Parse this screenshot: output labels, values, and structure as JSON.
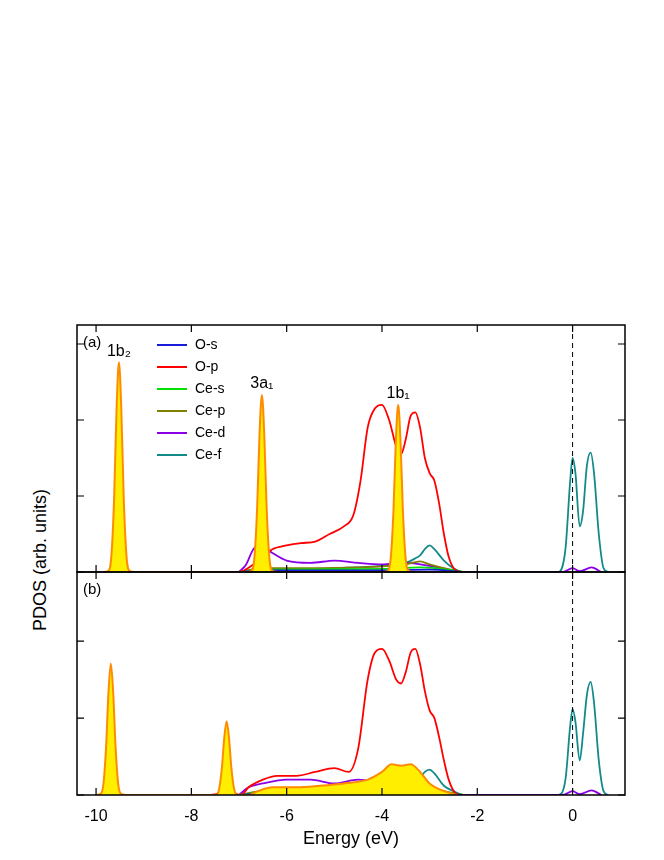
{
  "y_label": "PDOS (arb. units)",
  "chart_data": [
    {
      "type": "line",
      "title": "(a)",
      "xlim": [
        -10.4,
        1.1
      ],
      "xticks": [
        -10,
        -8,
        -6,
        -4,
        -2,
        0
      ],
      "ylim": [
        0,
        3.25
      ],
      "yticks": [
        0,
        1,
        2,
        3
      ],
      "tick_labels": false,
      "grid": false,
      "legend": "upper left",
      "annotations": [
        {
          "text": "1b₂",
          "x": -9.52,
          "y": 2.76
        },
        {
          "text": "3a₁",
          "x": -6.52,
          "y": 2.33
        },
        {
          "text": "1b₁",
          "x": -3.66,
          "y": 2.2
        }
      ],
      "reference_lines": [
        {
          "x": 0,
          "line_style": "dashed"
        }
      ],
      "series": [
        {
          "type": "area",
          "color": "#ff8c00",
          "x": [
            -9.85,
            -9.75,
            -9.68,
            -9.62,
            -9.57,
            -9.52,
            -9.47,
            -9.42,
            -9.36,
            -9.29,
            -9.19,
            -6.85,
            -6.75,
            -6.68,
            -6.62,
            -6.57,
            -6.52,
            -6.47,
            -6.42,
            -6.36,
            -6.29,
            -6.19,
            -3.99,
            -3.89,
            -3.82,
            -3.76,
            -3.71,
            -3.66,
            -3.61,
            -3.56,
            -3.5,
            -3.43,
            -3.33
          ],
          "values": [
            0,
            0.01,
            0.2,
            0.99,
            2.14,
            2.76,
            2.14,
            0.99,
            0.2,
            0.01,
            0,
            0,
            0.01,
            0.17,
            0.84,
            1.81,
            2.33,
            1.81,
            0.84,
            0.17,
            0.01,
            0,
            0,
            0.01,
            0.16,
            0.79,
            1.71,
            2.2,
            1.71,
            0.79,
            0.16,
            0.01,
            0
          ]
        },
        {
          "name": "O-s",
          "color": "#1a1adb",
          "x": [
            -7.0,
            -6.5,
            -4.0,
            -3.0,
            -2.3
          ],
          "values": [
            0,
            0.02,
            0.02,
            0.03,
            0
          ]
        },
        {
          "name": "O-p",
          "color": "#ff0000",
          "x": [
            -7.0,
            -6.9,
            -6.7,
            -6.5,
            -6.3,
            -6.0,
            -5.7,
            -5.4,
            -5.1,
            -4.8,
            -4.6,
            -4.45,
            -4.3,
            -4.15,
            -4.0,
            -3.85,
            -3.7,
            -3.6,
            -3.5,
            -3.4,
            -3.3,
            -3.2,
            -3.1,
            -3.0,
            -2.9,
            -2.8,
            -2.7,
            -2.6,
            -2.45,
            -2.3
          ],
          "values": [
            0,
            0.02,
            0.1,
            0.2,
            0.3,
            0.35,
            0.38,
            0.4,
            0.5,
            0.6,
            0.75,
            1.2,
            1.9,
            2.15,
            2.2,
            2.0,
            1.65,
            1.55,
            1.75,
            2.05,
            2.1,
            1.9,
            1.5,
            1.3,
            1.2,
            0.9,
            0.5,
            0.2,
            0.02,
            0
          ]
        },
        {
          "name": "Ce-s",
          "color": "#00e000",
          "x": [
            -7.0,
            -6.5,
            -4.0,
            -3.2,
            -2.5,
            -2.3
          ],
          "values": [
            0,
            0.03,
            0.04,
            0.06,
            0.02,
            0
          ]
        },
        {
          "name": "Ce-p",
          "color": "#808000",
          "x": [
            -7.0,
            -6.5,
            -5.5,
            -4.5,
            -3.5,
            -3.2,
            -3.0,
            -2.7,
            -2.3
          ],
          "values": [
            0,
            0.05,
            0.05,
            0.06,
            0.1,
            0.14,
            0.1,
            0.05,
            0
          ]
        },
        {
          "name": "Ce-d",
          "color": "#8a00e6",
          "x": [
            -7.0,
            -6.85,
            -6.7,
            -6.55,
            -6.3,
            -6.0,
            -5.5,
            -5.0,
            -4.5,
            -4.0,
            -3.5,
            -3.0,
            -2.6,
            -2.3,
            -0.2,
            0,
            0.15,
            0.4,
            0.6
          ],
          "values": [
            0,
            0.1,
            0.3,
            0.35,
            0.25,
            0.15,
            0.12,
            0.15,
            0.12,
            0.1,
            0.12,
            0.08,
            0.03,
            0,
            0,
            0.05,
            0.01,
            0.06,
            0
          ]
        },
        {
          "name": "Ce-f",
          "color": "#138a8a",
          "x": [
            -7.0,
            -6.5,
            -5.0,
            -4.0,
            -3.5,
            -3.3,
            -3.2,
            -3.1,
            -3.0,
            -2.9,
            -2.7,
            -2.5,
            -2.3,
            -0.3,
            -0.15,
            -0.05,
            0,
            0.06,
            0.15,
            0.22,
            0.3,
            0.38,
            0.45,
            0.55,
            0.65,
            0.75
          ],
          "values": [
            0,
            0.02,
            0.05,
            0.08,
            0.12,
            0.18,
            0.22,
            0.3,
            0.35,
            0.3,
            0.15,
            0.05,
            0,
            0,
            0.3,
            1.2,
            1.5,
            1.3,
            0.6,
            0.8,
            1.4,
            1.57,
            1.3,
            0.5,
            0.05,
            0
          ]
        }
      ]
    },
    {
      "type": "line",
      "title": "(b)",
      "x_label": "Energy (eV)",
      "xlim": [
        -10.4,
        1.1
      ],
      "xticks": [
        -10,
        -8,
        -6,
        -4,
        -2,
        0
      ],
      "ylim": [
        0,
        2.9
      ],
      "yticks": [
        0,
        1,
        2
      ],
      "tick_labels": "x",
      "grid": false,
      "reference_lines": [
        {
          "x": 0,
          "line_style": "dashed"
        }
      ],
      "series": [
        {
          "type": "area",
          "color": "#ff8c00",
          "x": [
            -10.02,
            -9.92,
            -9.85,
            -9.79,
            -9.74,
            -9.69,
            -9.64,
            -9.59,
            -9.53,
            -9.46,
            -9.36,
            -7.59,
            -7.49,
            -7.42,
            -7.36,
            -7.31,
            -7.26,
            -7.21,
            -7.16,
            -7.1,
            -7.03,
            -6.93,
            -6.8,
            -6.6,
            -6.3,
            -5.8,
            -5.3,
            -4.8,
            -4.3,
            -4.0,
            -3.8,
            -3.6,
            -3.4,
            -3.2,
            -3.0,
            -2.7,
            -2.4
          ],
          "values": [
            0,
            0.01,
            0.12,
            0.62,
            1.33,
            1.71,
            1.33,
            0.62,
            0.12,
            0.01,
            0,
            0,
            0,
            0.07,
            0.35,
            0.74,
            0.96,
            0.74,
            0.35,
            0.07,
            0,
            0,
            0,
            0.05,
            0.1,
            0.1,
            0.12,
            0.15,
            0.2,
            0.3,
            0.4,
            0.38,
            0.4,
            0.3,
            0.15,
            0.05,
            0
          ]
        },
        {
          "name": "O-s",
          "color": "#1a1adb",
          "x": [
            -7.0,
            -6.5,
            -4.0,
            -3.0,
            -2.3
          ],
          "values": [
            0,
            0.02,
            0.02,
            0.03,
            0
          ]
        },
        {
          "name": "O-p",
          "color": "#ff0000",
          "x": [
            -7.6,
            -7.45,
            -7.35,
            -7.26,
            -7.17,
            -7.07,
            -6.95,
            -6.8,
            -6.5,
            -6.2,
            -5.8,
            -5.4,
            -5.0,
            -4.7,
            -4.5,
            -4.3,
            -4.15,
            -4.0,
            -3.85,
            -3.7,
            -3.6,
            -3.5,
            -3.4,
            -3.3,
            -3.2,
            -3.1,
            -3.0,
            -2.9,
            -2.8,
            -2.7,
            -2.6,
            -2.45,
            -2.3
          ],
          "values": [
            0,
            0.02,
            0.1,
            0.2,
            0.1,
            0.02,
            0,
            0.1,
            0.2,
            0.25,
            0.25,
            0.3,
            0.35,
            0.3,
            0.6,
            1.5,
            1.85,
            1.9,
            1.75,
            1.5,
            1.45,
            1.6,
            1.85,
            1.9,
            1.7,
            1.35,
            1.1,
            1.0,
            0.75,
            0.45,
            0.2,
            0.02,
            0
          ]
        },
        {
          "name": "Ce-s",
          "color": "#00e000",
          "x": [
            -7.0,
            -6.5,
            -4.0,
            -3.2,
            -2.5,
            -2.3
          ],
          "values": [
            0,
            0.03,
            0.04,
            0.06,
            0.02,
            0
          ]
        },
        {
          "name": "Ce-p",
          "color": "#808000",
          "x": [
            -7.0,
            -6.5,
            -5.5,
            -4.5,
            -3.5,
            -3.2,
            -3.0,
            -2.7,
            -2.3
          ],
          "values": [
            0,
            0.05,
            0.05,
            0.06,
            0.1,
            0.14,
            0.1,
            0.05,
            0
          ]
        },
        {
          "name": "Ce-d",
          "color": "#8a00e6",
          "x": [
            -7.0,
            -6.8,
            -6.5,
            -6.0,
            -5.5,
            -5.0,
            -4.5,
            -4.0,
            -3.5,
            -3.0,
            -2.6,
            -2.3,
            -0.2,
            0,
            0.15,
            0.4,
            0.6
          ],
          "values": [
            0,
            0.1,
            0.15,
            0.2,
            0.2,
            0.15,
            0.2,
            0.15,
            0.12,
            0.08,
            0.03,
            0,
            0,
            0.05,
            0.01,
            0.06,
            0
          ]
        },
        {
          "name": "Ce-f",
          "color": "#138a8a",
          "x": [
            -7.0,
            -5.0,
            -4.0,
            -3.5,
            -3.3,
            -3.2,
            -3.1,
            -3.0,
            -2.9,
            -2.7,
            -2.5,
            -2.3,
            -0.3,
            -0.15,
            -0.05,
            0,
            0.06,
            0.15,
            0.22,
            0.3,
            0.38,
            0.45,
            0.55,
            0.65,
            0.75
          ],
          "values": [
            0,
            0.05,
            0.08,
            0.12,
            0.18,
            0.22,
            0.3,
            0.33,
            0.28,
            0.12,
            0.05,
            0,
            0,
            0.2,
            0.9,
            1.12,
            0.95,
            0.45,
            0.8,
            1.3,
            1.47,
            1.2,
            0.45,
            0.05,
            0
          ]
        }
      ]
    }
  ]
}
